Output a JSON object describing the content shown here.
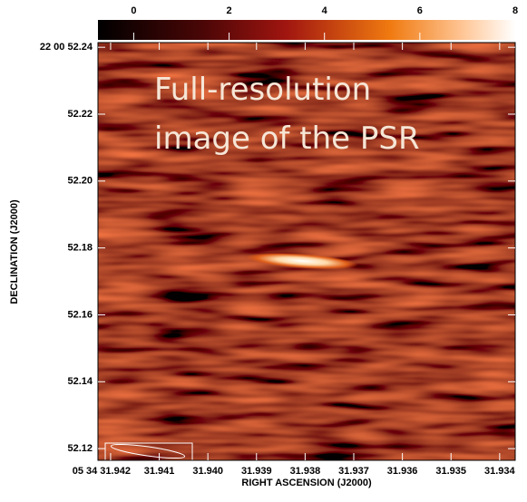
{
  "chart_data": {
    "type": "image",
    "annotation_lines": [
      "Full-resolution",
      "image of the PSR"
    ],
    "x_label": "RIGHT ASCENSION (J2000)",
    "y_label": "DECLINATION (J2000)",
    "xlim": [
      31.94226,
      31.93368
    ],
    "xticks": [
      {
        "value": 31.942,
        "label": "05 34 31.942"
      },
      31.941,
      {
        "value": 31.94,
        "label": "31.940"
      },
      31.939,
      31.938,
      31.937,
      31.936,
      31.935,
      31.934
    ],
    "ylim": [
      52.1165,
      52.2414
    ],
    "yticks": [
      52.12,
      52.14,
      52.16,
      52.18,
      {
        "value": 52.2,
        "label": "52.20"
      },
      52.22,
      {
        "value": 52.24,
        "label": "22 00 52.24"
      }
    ],
    "colorbar": {
      "clim": [
        -0.75,
        8.0
      ],
      "ticks": [
        0,
        2,
        4,
        6,
        8
      ]
    }
  }
}
